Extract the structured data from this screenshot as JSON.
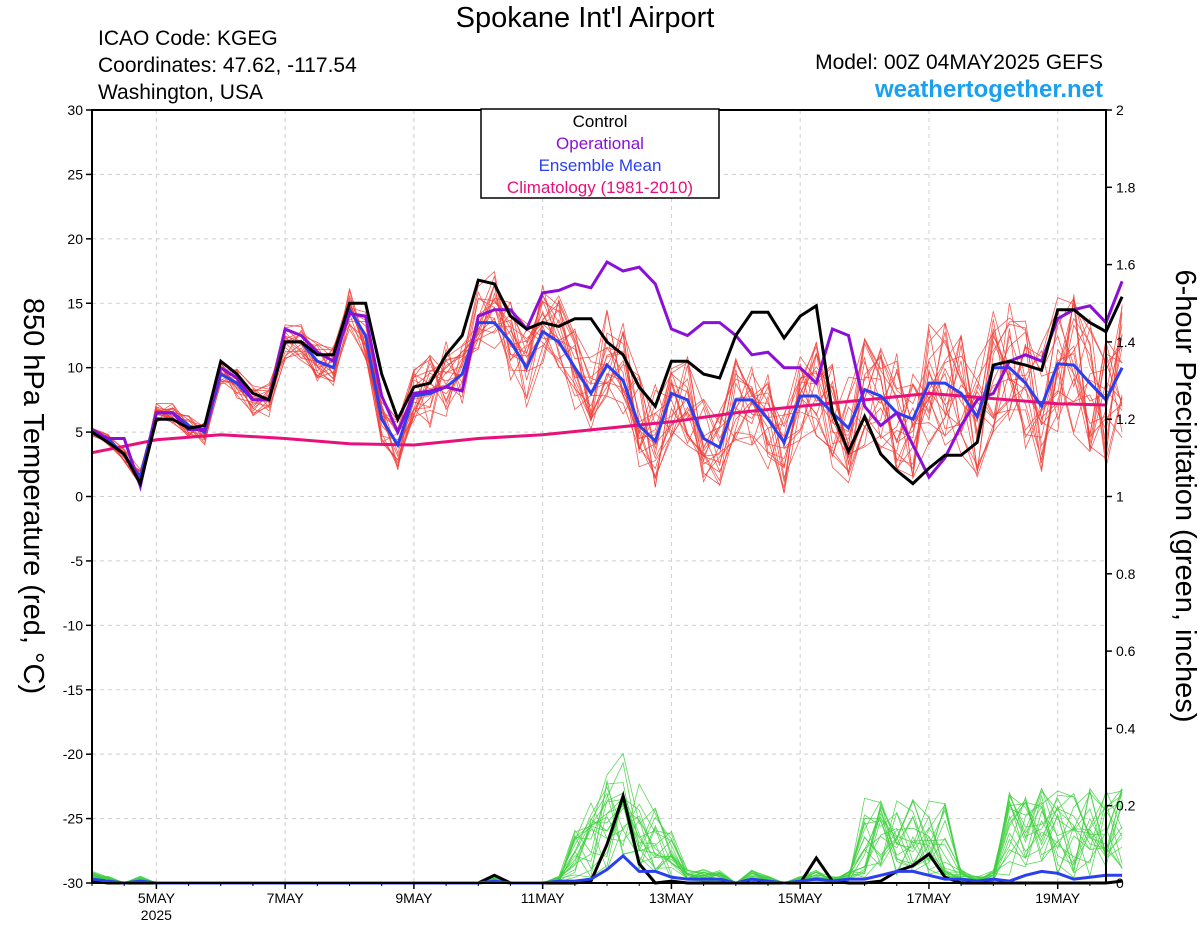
{
  "header": {
    "title": "Spokane Int'l Airport",
    "icao": "ICAO Code: KGEG",
    "coordinates": "Coordinates: 47.62, -117.54",
    "location": "Washington, USA",
    "model": "Model: 00Z 04MAY2025 GEFS",
    "website": "weathertogether.net"
  },
  "chart_data": {
    "type": "line",
    "title": "Spokane Int'l Airport",
    "ylabel": "850 hPa Temperature (red, °C)",
    "y2label": "6-hour Precipitation (green, inches)",
    "ylim": [
      -30,
      30
    ],
    "y2lim": [
      0,
      2
    ],
    "yticks": [
      "30",
      "25",
      "20",
      "15",
      "10",
      "5",
      "0",
      "-5",
      "-10",
      "-15",
      "-20",
      "-25",
      "-30"
    ],
    "y2ticks": [
      "2",
      "1.8",
      "1.6",
      "1.4",
      "1.2",
      "1",
      "0.8",
      "0.6",
      "0.4",
      "0.2",
      "0"
    ],
    "x_unit": "days since 00Z 04MAY2025",
    "xlim": [
      0,
      15.75
    ],
    "xticks": [
      {
        "t": 1,
        "label": "5MAY",
        "sub": "2025"
      },
      {
        "t": 3,
        "label": "7MAY"
      },
      {
        "t": 5,
        "label": "9MAY"
      },
      {
        "t": 7,
        "label": "11MAY"
      },
      {
        "t": 9,
        "label": "13MAY"
      },
      {
        "t": 11,
        "label": "15MAY"
      },
      {
        "t": 13,
        "label": "17MAY"
      },
      {
        "t": 15,
        "label": "19MAY"
      }
    ],
    "legend": {
      "position": "top-center",
      "items": [
        {
          "label": "Control",
          "color": "#000000"
        },
        {
          "label": "Operational",
          "color": "#8a10d8"
        },
        {
          "label": "Ensemble Mean",
          "color": "#2a3ff0"
        },
        {
          "label": "Climatology (1981-2010)",
          "color": "#e8107a"
        }
      ]
    },
    "colors": {
      "members_temp": "#f04038",
      "members_precip": "#40d040",
      "control": "#000000",
      "operational": "#8a10d8",
      "ensemble_mean": "#2a3ff0",
      "climatology": "#e8107a"
    },
    "step_days": 0.25,
    "series": {
      "control_temp": [
        5.0,
        4.2,
        3.3,
        1.0,
        6.0,
        6.0,
        5.3,
        5.5,
        10.5,
        9.5,
        8.0,
        7.5,
        12.0,
        12.0,
        11.0,
        11.0,
        15.0,
        15.0,
        9.5,
        6.0,
        8.5,
        8.8,
        11.0,
        12.5,
        16.8,
        16.5,
        14.0,
        13.0,
        13.5,
        13.2,
        13.8,
        13.8,
        12.0,
        11.0,
        8.5,
        7.0,
        10.5,
        10.5,
        9.5,
        9.2,
        12.5,
        14.3,
        14.3,
        12.3,
        14.0,
        14.8,
        6.5,
        3.5,
        6.2,
        3.3,
        2.0,
        1.0,
        2.2,
        3.2,
        3.2,
        4.2,
        10.2,
        10.5,
        10.2,
        9.8,
        14.5,
        14.5,
        13.5,
        12.8,
        15.5
      ],
      "operational_temp": [
        5.2,
        4.5,
        4.5,
        0.8,
        6.5,
        6.5,
        5.2,
        5.2,
        10.0,
        9.2,
        7.5,
        7.5,
        13.0,
        12.5,
        11.2,
        10.5,
        14.2,
        14.0,
        7.8,
        5.0,
        8.0,
        8.2,
        8.5,
        8.2,
        14.0,
        14.5,
        14.5,
        13.0,
        15.8,
        16.0,
        16.5,
        16.2,
        18.2,
        17.5,
        17.8,
        16.5,
        13.0,
        12.5,
        13.5,
        13.5,
        12.5,
        11.0,
        11.2,
        10.0,
        10.0,
        8.8,
        13.0,
        12.5,
        7.0,
        5.5,
        6.5,
        4.0,
        1.5,
        3.0,
        5.5,
        7.5,
        8.0,
        10.5,
        11.0,
        10.5,
        13.8,
        14.5,
        14.8,
        13.5,
        16.7
      ],
      "ensemble_mean_temp": [
        5.0,
        4.5,
        3.2,
        1.5,
        6.5,
        6.5,
        5.5,
        5.0,
        9.5,
        8.8,
        7.5,
        7.5,
        12.0,
        12.0,
        10.5,
        10.0,
        14.5,
        12.5,
        6.0,
        4.0,
        7.8,
        8.0,
        8.5,
        9.5,
        13.5,
        13.5,
        12.0,
        10.0,
        12.8,
        12.0,
        10.0,
        8.0,
        10.2,
        9.0,
        5.5,
        4.3,
        8.0,
        7.5,
        4.5,
        3.8,
        7.5,
        7.5,
        6.0,
        4.2,
        7.8,
        7.8,
        6.5,
        5.3,
        8.3,
        7.8,
        6.5,
        6.0,
        8.8,
        8.8,
        8.0,
        6.2,
        10.0,
        10.0,
        8.8,
        7.0,
        10.3,
        10.2,
        8.8,
        7.5,
        10.0
      ],
      "climatology_temp": [
        [
          0,
          3.4
        ],
        [
          1,
          4.4
        ],
        [
          2,
          4.8
        ],
        [
          3,
          4.5
        ],
        [
          4,
          4.1
        ],
        [
          5,
          4.0
        ],
        [
          6,
          4.5
        ],
        [
          7,
          4.8
        ],
        [
          8,
          5.3
        ],
        [
          9,
          5.8
        ],
        [
          10,
          6.5
        ],
        [
          11,
          7.0
        ],
        [
          12,
          7.5
        ],
        [
          13,
          8.0
        ],
        [
          14,
          7.6
        ],
        [
          15,
          7.2
        ],
        [
          15.75,
          7.1
        ]
      ],
      "control_precip": [
        0.005,
        0,
        0,
        0,
        0,
        0,
        0,
        0,
        0,
        0,
        0,
        0,
        0,
        0,
        0,
        0,
        0,
        0,
        0,
        0,
        0,
        0,
        0,
        0,
        0,
        0.02,
        0,
        0,
        0,
        0,
        0,
        0.005,
        0.1,
        0.225,
        0.05,
        0,
        0.005,
        0,
        0,
        0,
        0,
        0,
        0,
        0,
        0,
        0.065,
        0.005,
        0,
        0,
        0.005,
        0.03,
        0.045,
        0.075,
        0.015,
        0,
        0,
        0,
        0,
        0,
        0,
        0,
        0,
        0,
        0,
        0.005
      ],
      "ensemble_mean_precip": [
        0.01,
        0.005,
        0,
        0.005,
        0,
        0,
        0,
        0,
        0,
        0,
        0,
        0,
        0,
        0,
        0,
        0,
        0,
        0,
        0,
        0,
        0,
        0,
        0,
        0,
        0,
        0.005,
        0,
        0,
        0,
        0.005,
        0.005,
        0.01,
        0.035,
        0.07,
        0.03,
        0.03,
        0.015,
        0.01,
        0.01,
        0.01,
        0,
        0.01,
        0.005,
        0,
        0.005,
        0.01,
        0.005,
        0.01,
        0.01,
        0.02,
        0.03,
        0.03,
        0.02,
        0.01,
        0.01,
        0.005,
        0.01,
        0.005,
        0.02,
        0.03,
        0.025,
        0.01,
        0.015,
        0.02,
        0.02
      ]
    }
  }
}
